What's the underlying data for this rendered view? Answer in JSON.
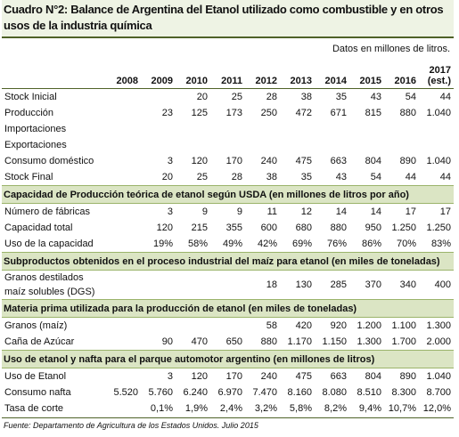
{
  "title": "Cuadro N°2: Balance de Argentina del Etanol utilizado como combustible y en otros usos de la industria química",
  "note": "Datos en millones de litros.",
  "header": {
    "years": [
      "2008",
      "2009",
      "2010",
      "2011",
      "2012",
      "2013",
      "2014",
      "2015",
      "2016"
    ],
    "last_year": "2017",
    "last_year_note": "(est.)"
  },
  "groups": [
    {
      "rows": [
        {
          "label": "Stock Inicial",
          "values": [
            null,
            null,
            "20",
            "25",
            "28",
            "38",
            "35",
            "43",
            "54",
            "44"
          ]
        },
        {
          "label": "Producción",
          "values": [
            null,
            "23",
            "125",
            "173",
            "250",
            "472",
            "671",
            "815",
            "880",
            "1.040"
          ]
        },
        {
          "label": "Importaciones",
          "values": [
            null,
            null,
            null,
            null,
            null,
            null,
            null,
            null,
            null,
            null
          ]
        },
        {
          "label": "Exportaciones",
          "values": [
            null,
            null,
            null,
            null,
            null,
            null,
            null,
            null,
            null,
            null
          ]
        },
        {
          "label": "Consumo doméstico",
          "values": [
            null,
            "3",
            "120",
            "170",
            "240",
            "475",
            "663",
            "804",
            "890",
            "1.040"
          ]
        },
        {
          "label": "Stock Final",
          "values": [
            null,
            "20",
            "25",
            "28",
            "38",
            "35",
            "43",
            "54",
            "44",
            "44"
          ]
        }
      ]
    },
    {
      "heading": "Capacidad de Producción teórica de etanol según USDA (en millones de litros por año)",
      "rows": [
        {
          "label": "Número de fábricas",
          "values": [
            null,
            "3",
            "9",
            "9",
            "11",
            "12",
            "14",
            "14",
            "17",
            "17"
          ]
        },
        {
          "label": "Capacidad total",
          "values": [
            null,
            "120",
            "215",
            "355",
            "600",
            "680",
            "880",
            "950",
            "1.250",
            "1.250"
          ]
        },
        {
          "label": "Uso de la capacidad",
          "values": [
            null,
            "19%",
            "58%",
            "49%",
            "42%",
            "69%",
            "76%",
            "86%",
            "70%",
            "83%"
          ]
        }
      ]
    },
    {
      "heading": "Subproductos obtenidos en el proceso industrial del maíz para etanol (en miles de toneladas)",
      "rows": [
        {
          "label": "Granos destilados maíz solubles (DGS)",
          "values": [
            null,
            null,
            null,
            null,
            "18",
            "130",
            "285",
            "370",
            "340",
            "400"
          ]
        }
      ]
    },
    {
      "heading": "Materia prima utilizada para la producción de etanol (en miles de toneladas)",
      "rows": [
        {
          "label": "Granos (maíz)",
          "values": [
            null,
            null,
            null,
            null,
            "58",
            "420",
            "920",
            "1.200",
            "1.100",
            "1.300"
          ]
        },
        {
          "label": "Caña de Azúcar",
          "values": [
            null,
            "90",
            "470",
            "650",
            "880",
            "1.170",
            "1.150",
            "1.300",
            "1.700",
            "2.000"
          ]
        }
      ]
    },
    {
      "heading": "Uso de etanol y nafta para el parque automotor argentino (en millones de litros)",
      "rows": [
        {
          "label": "Uso de Etanol",
          "values": [
            null,
            "3",
            "120",
            "170",
            "240",
            "475",
            "663",
            "804",
            "890",
            "1.040"
          ]
        },
        {
          "label": "Consumo nafta",
          "values": [
            "5.520",
            "5.760",
            "6.240",
            "6.970",
            "7.470",
            "8.160",
            "8.080",
            "8.510",
            "8.300",
            "8.700"
          ]
        },
        {
          "label": "Tasa de corte",
          "values": [
            null,
            "0,1%",
            "1,9%",
            "2,4%",
            "3,2%",
            "5,8%",
            "8,2%",
            "9,4%",
            "10,7%",
            "12,0%"
          ]
        }
      ]
    }
  ],
  "source": "Fuente: Departamento de Agricultura de los Estados Unidos. Julio 2015"
}
